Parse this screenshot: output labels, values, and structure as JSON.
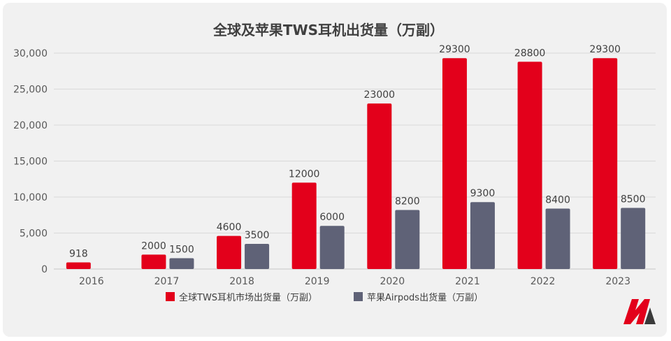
{
  "chart_data": {
    "type": "bar",
    "title": "全球及苹果TWS耳机出货量（万副）",
    "categories": [
      "2016",
      "2017",
      "2018",
      "2019",
      "2020",
      "2021",
      "2022",
      "2023"
    ],
    "series": [
      {
        "name": "全球TWS耳机市场出货量（万副）",
        "color": "#e3001b",
        "values": [
          918,
          2000,
          4600,
          12000,
          23000,
          29300,
          28800,
          29300
        ],
        "labels": [
          "918",
          "2000",
          "4600",
          "12000",
          "23000",
          "29300",
          "28800",
          "29300"
        ]
      },
      {
        "name": "苹果Airpods出货量（万副）",
        "color": "#5f6277",
        "values": [
          null,
          1500,
          3500,
          6000,
          8200,
          9300,
          8400,
          8500
        ],
        "labels": [
          "",
          "1500",
          "3500",
          "6000",
          "8200",
          "9300",
          "8400",
          "8500"
        ]
      }
    ],
    "y_ticks": [
      0,
      5000,
      10000,
      15000,
      20000,
      25000,
      30000
    ],
    "y_tick_labels": [
      "0",
      "5,000",
      "10,000",
      "15,000",
      "20,000",
      "25,000",
      "30,000"
    ],
    "ylim": [
      0,
      30000
    ],
    "grid": true,
    "legend_position": "bottom"
  },
  "logo": {
    "icon": "brand-logo-icon",
    "colors": [
      "#e3001b",
      "#3a3a3a"
    ]
  }
}
